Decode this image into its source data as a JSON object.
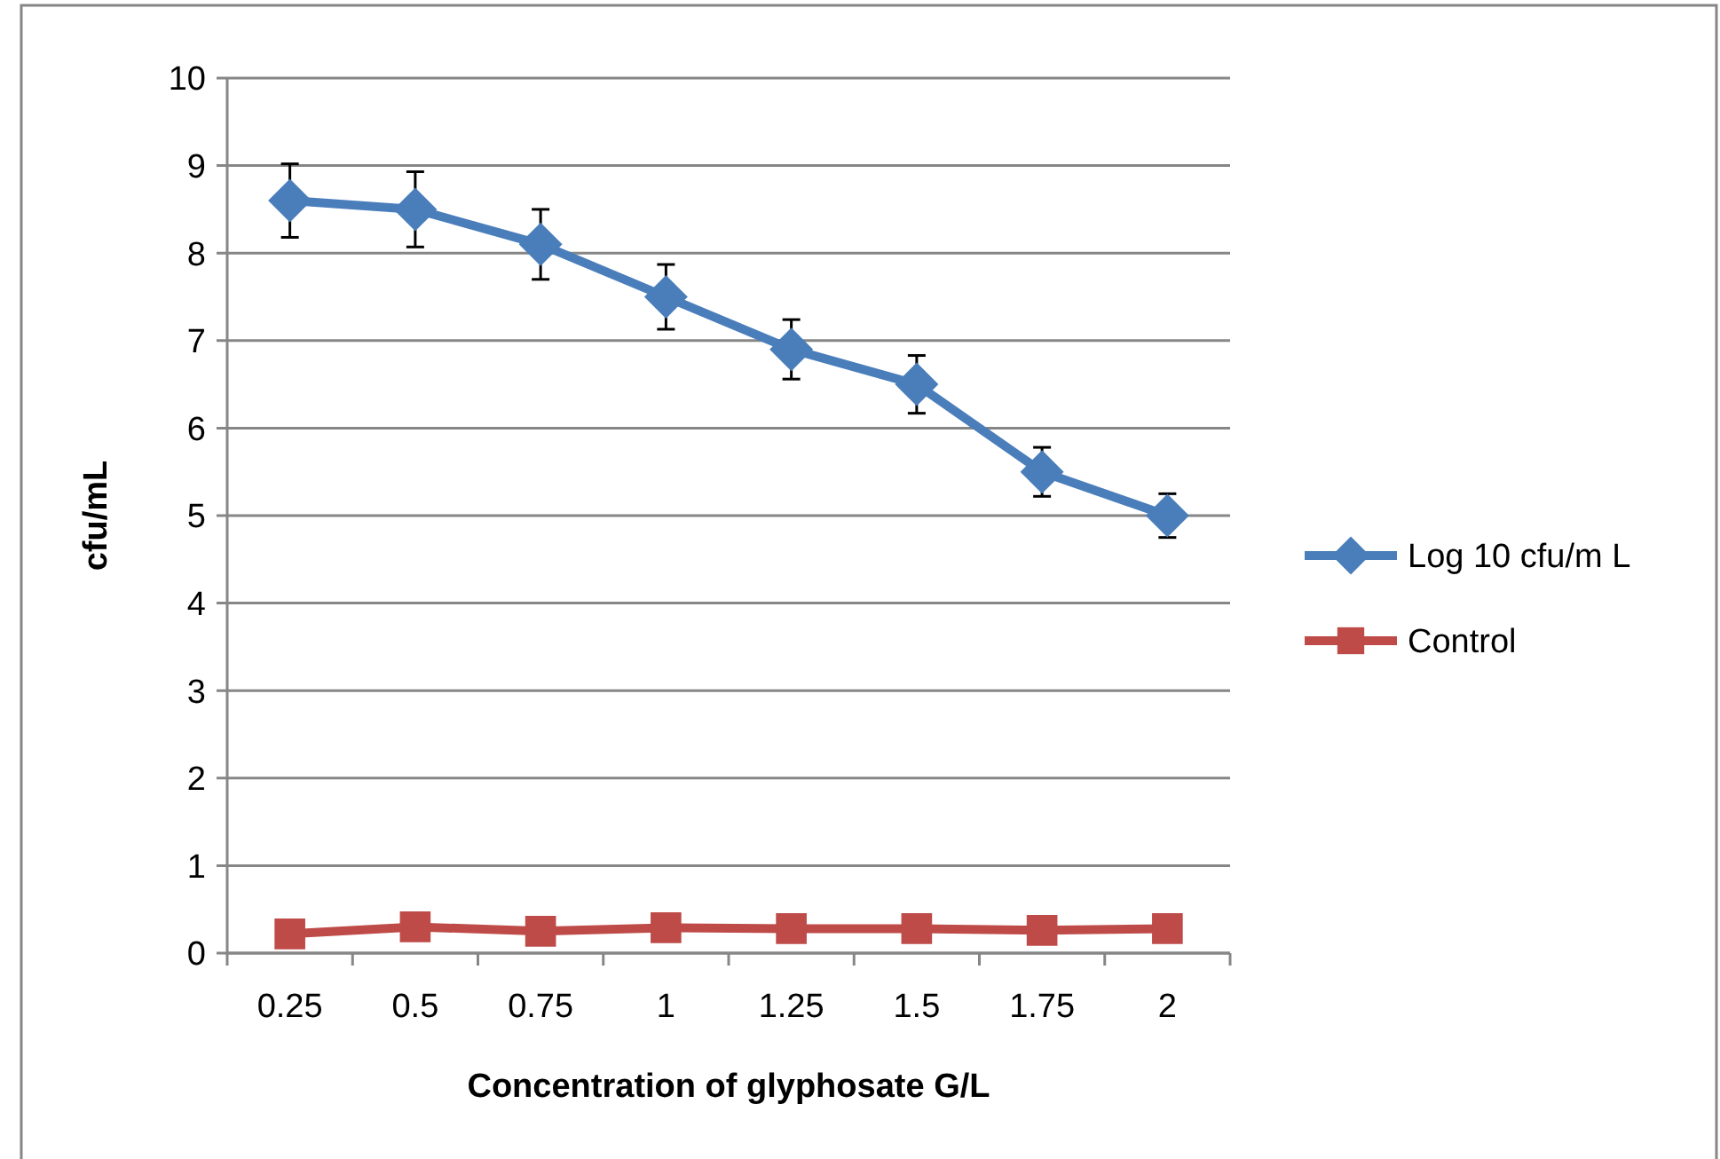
{
  "chart_data": {
    "type": "line",
    "xlabel": "Concentration of glyphosate G/L",
    "ylabel": "cfu/mL",
    "categories": [
      "0.25",
      "0.5",
      "0.75",
      "1",
      "1.25",
      "1.5",
      "1.75",
      "2"
    ],
    "series": [
      {
        "name": "Log 10 cfu/m L",
        "color": "#4a7ebb",
        "marker": "diamond",
        "values": [
          8.6,
          8.5,
          8.1,
          7.5,
          6.9,
          6.5,
          5.5,
          5.0
        ],
        "errors": [
          0.42,
          0.43,
          0.4,
          0.37,
          0.34,
          0.33,
          0.28,
          0.25
        ]
      },
      {
        "name": "Control",
        "color": "#be4b48",
        "marker": "square",
        "values": [
          0.22,
          0.3,
          0.25,
          0.29,
          0.28,
          0.28,
          0.26,
          0.28
        ]
      }
    ],
    "ylim": [
      0,
      10
    ],
    "yticks": [
      0,
      1,
      2,
      3,
      4,
      5,
      6,
      7,
      8,
      9,
      10
    ],
    "grid": "y",
    "legend": "right",
    "line_style": "solid"
  }
}
